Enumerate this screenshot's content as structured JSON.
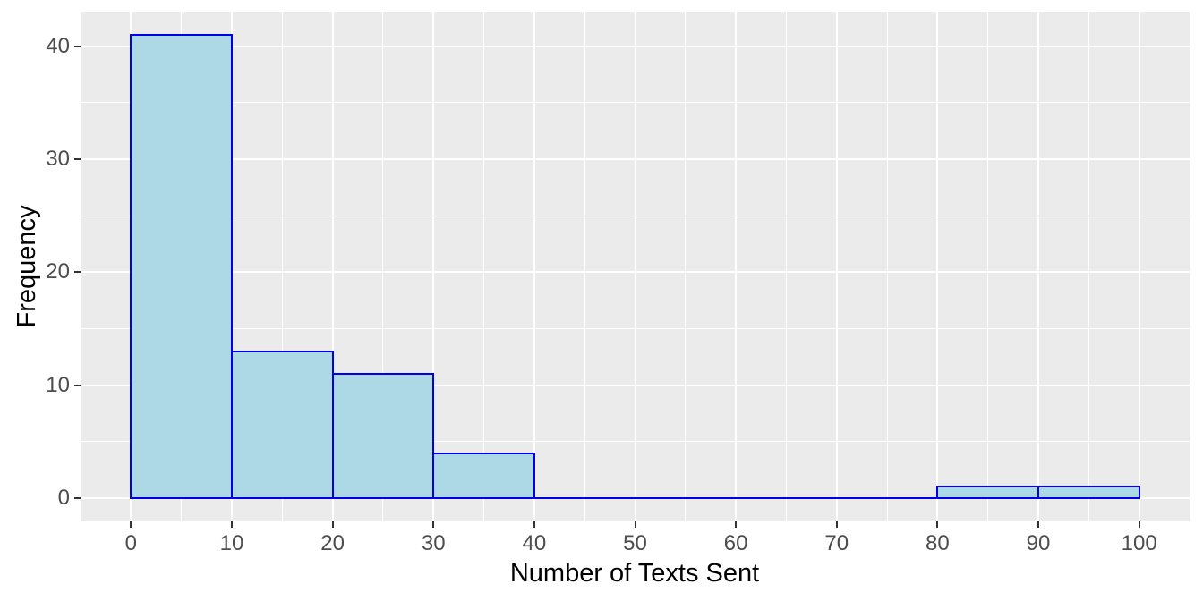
{
  "figure": {
    "background": "#FFFFFF"
  },
  "chart_data": {
    "type": "bar",
    "subtype": "histogram",
    "title": "",
    "xlabel": "Number of Texts Sent",
    "ylabel": "Frequency",
    "bin_width": 10,
    "bins": [
      {
        "x0": 0,
        "x1": 10,
        "count": 41
      },
      {
        "x0": 10,
        "x1": 20,
        "count": 13
      },
      {
        "x0": 20,
        "x1": 30,
        "count": 11
      },
      {
        "x0": 30,
        "x1": 40,
        "count": 4
      },
      {
        "x0": 40,
        "x1": 50,
        "count": 0
      },
      {
        "x0": 50,
        "x1": 60,
        "count": 0
      },
      {
        "x0": 60,
        "x1": 70,
        "count": 0
      },
      {
        "x0": 70,
        "x1": 80,
        "count": 0
      },
      {
        "x0": 80,
        "x1": 90,
        "count": 1
      },
      {
        "x0": 90,
        "x1": 100,
        "count": 1
      }
    ],
    "x_ticks": [
      0,
      10,
      20,
      30,
      40,
      50,
      60,
      70,
      80,
      90,
      100
    ],
    "y_ticks": [
      0,
      10,
      20,
      30,
      40
    ],
    "x_minor": [
      5,
      15,
      25,
      35,
      45,
      55,
      65,
      75,
      85,
      95
    ],
    "y_minor": [
      5,
      15,
      25,
      35
    ],
    "xlim": [
      -5,
      105
    ],
    "ylim": [
      -2.05,
      43.05
    ],
    "grid": true,
    "legend_position": "none",
    "colors": {
      "bar_fill": "#ADD8E6",
      "bar_stroke": "#0000EE",
      "panel_background": "#EBEBEB",
      "gridline": "#FFFFFF",
      "tick_label": "#4D4D4D",
      "tick_mark": "#333333",
      "axis_title": "#000000",
      "figure_background": "#FFFFFF"
    }
  }
}
